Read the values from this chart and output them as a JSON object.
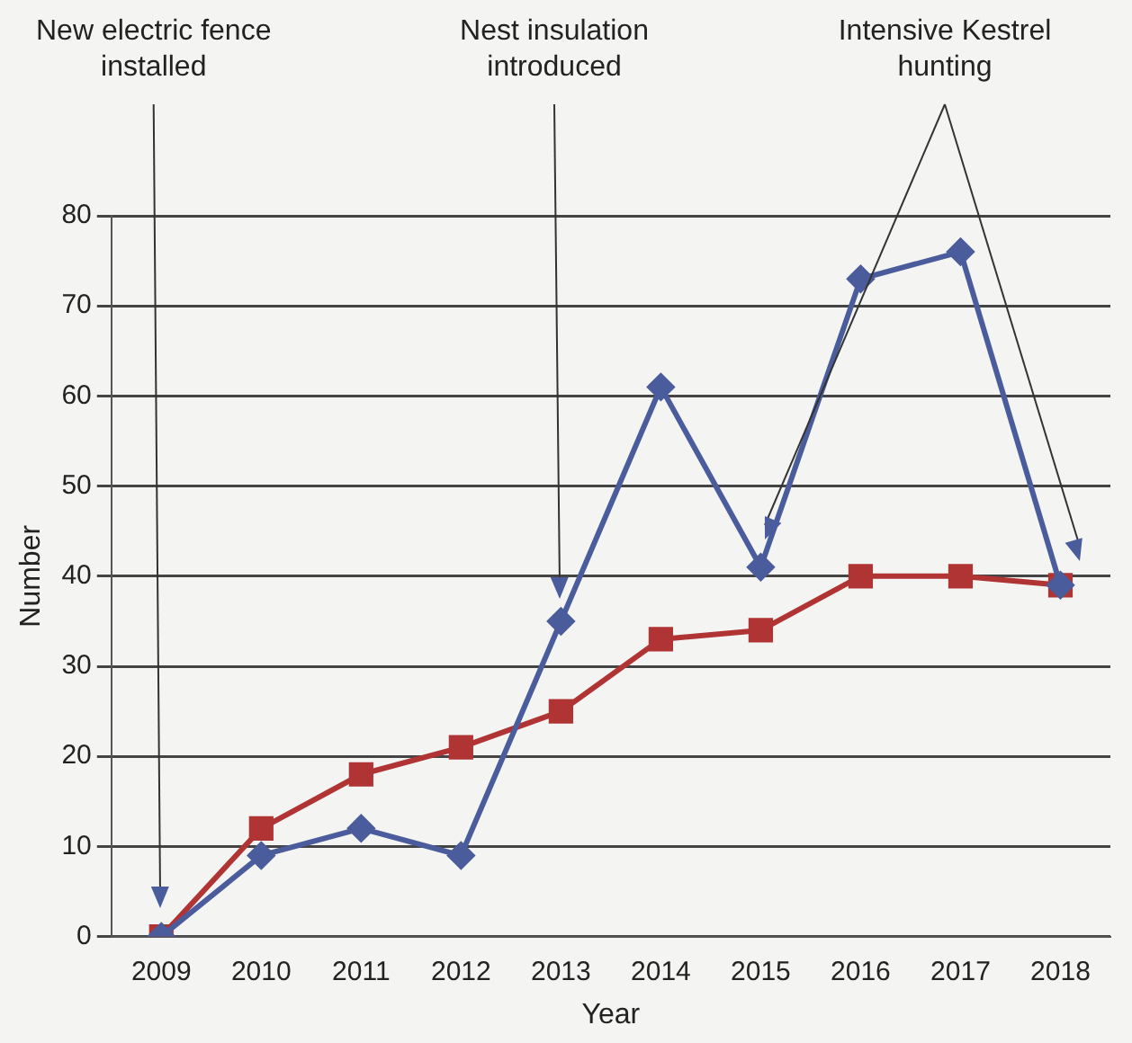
{
  "chart_data": {
    "type": "line",
    "xlabel": "Year",
    "ylabel": "Number",
    "categories": [
      "2009",
      "2010",
      "2011",
      "2012",
      "2013",
      "2014",
      "2015",
      "2016",
      "2017",
      "2018"
    ],
    "series": [
      {
        "color": "#4a5c9c",
        "marker": "diamond",
        "values": [
          0,
          9,
          12,
          9,
          35,
          61,
          41,
          73,
          76,
          39
        ]
      },
      {
        "color": "#b03434",
        "marker": "square",
        "values": [
          0,
          12,
          18,
          21,
          25,
          33,
          34,
          40,
          40,
          39
        ]
      }
    ],
    "ylim": [
      0,
      80
    ],
    "yticks": [
      0,
      10,
      20,
      30,
      40,
      50,
      60,
      70,
      80
    ],
    "grid": "y",
    "legend": false,
    "annotations": [
      "New electric fence installed",
      "Nest insulation introduced",
      "Intensive Kestrel hunting"
    ]
  }
}
